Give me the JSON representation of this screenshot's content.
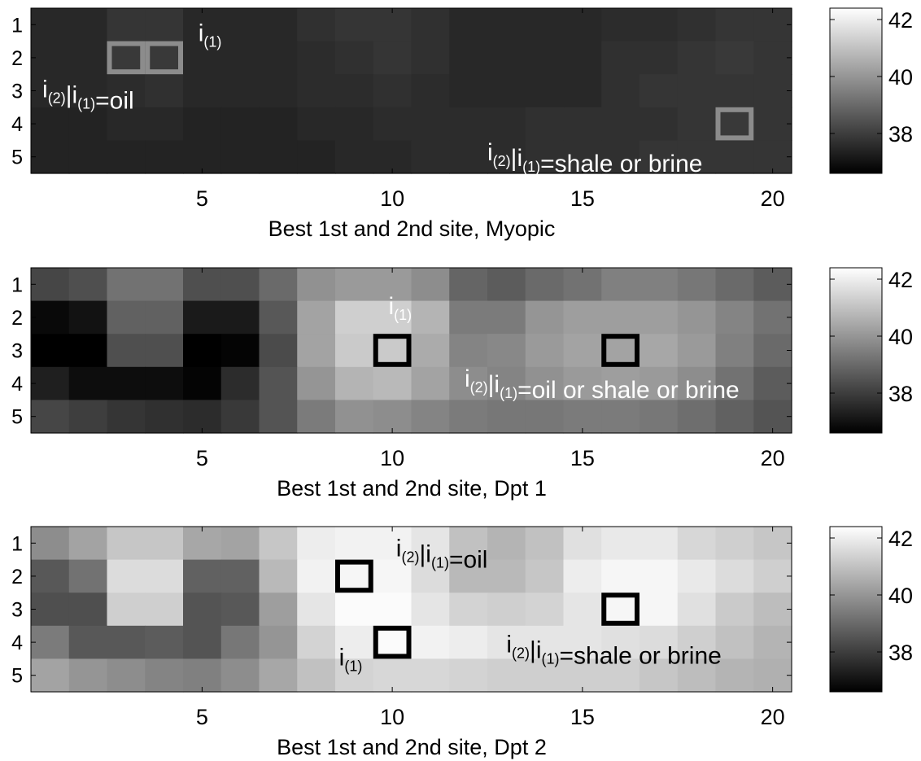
{
  "chart_data": [
    {
      "type": "heatmap",
      "title": "",
      "xlabel": "Best 1st and 2nd site, Myopic",
      "ylabel": "",
      "x_ticks": [
        "5",
        "10",
        "15",
        "20"
      ],
      "y_ticks": [
        "1",
        "2",
        "3",
        "4",
        "5"
      ],
      "xlim": [
        0.5,
        20.5
      ],
      "ylim": [
        0.5,
        5.5
      ],
      "colormap": "gray",
      "colorbar": {
        "ticks": [
          "38",
          "40",
          "42"
        ],
        "range": [
          36.6,
          42.4
        ]
      },
      "grid": false,
      "values": [
        [
          37.5,
          37.5,
          37.8,
          37.8,
          37.5,
          37.5,
          37.5,
          37.7,
          37.8,
          37.8,
          37.7,
          37.5,
          37.5,
          37.5,
          37.5,
          37.6,
          37.6,
          37.7,
          37.8,
          37.8
        ],
        [
          37.5,
          37.5,
          37.9,
          37.9,
          37.5,
          37.5,
          37.5,
          37.6,
          37.7,
          37.8,
          37.7,
          37.5,
          37.5,
          37.5,
          37.5,
          37.7,
          37.7,
          37.8,
          37.9,
          37.8
        ],
        [
          37.5,
          37.5,
          37.6,
          37.7,
          37.5,
          37.5,
          37.5,
          37.6,
          37.6,
          37.7,
          37.6,
          37.5,
          37.5,
          37.5,
          37.5,
          37.7,
          37.8,
          37.8,
          37.8,
          37.8
        ],
        [
          37.4,
          37.4,
          37.5,
          37.5,
          37.4,
          37.4,
          37.4,
          37.5,
          37.5,
          37.6,
          37.6,
          37.6,
          37.6,
          37.7,
          37.7,
          37.7,
          37.7,
          37.8,
          37.9,
          37.8
        ],
        [
          37.4,
          37.4,
          37.4,
          37.4,
          37.4,
          37.4,
          37.4,
          37.4,
          37.5,
          37.5,
          37.6,
          37.6,
          37.6,
          37.7,
          37.7,
          37.7,
          37.8,
          37.8,
          37.8,
          37.8
        ]
      ],
      "markers": [
        {
          "col": 3,
          "row": 2,
          "shade": "gray"
        },
        {
          "col": 4,
          "row": 2,
          "shade": "gray"
        },
        {
          "col": 19,
          "row": 4,
          "shade": "gray"
        }
      ],
      "annotations": [
        {
          "text": "i",
          "sub": "(1)",
          "col": 4.9,
          "row": 1.5
        },
        {
          "text": "i",
          "sub": "(2)",
          "rest": "|i",
          "sub2": "(1)",
          "tail": "=oil",
          "col": 0.8,
          "row": 3.2
        },
        {
          "text": "i",
          "sub": "(2)",
          "rest": "|i",
          "sub2": "(1)",
          "tail": "=shale or brine",
          "col": 12.5,
          "row": 5.1
        }
      ]
    },
    {
      "type": "heatmap",
      "title": "",
      "xlabel": "Best 1st and 2nd site, Dpt 1",
      "ylabel": "",
      "x_ticks": [
        "5",
        "10",
        "15",
        "20"
      ],
      "y_ticks": [
        "1",
        "2",
        "3",
        "4",
        "5"
      ],
      "xlim": [
        0.5,
        20.5
      ],
      "ylim": [
        0.5,
        5.5
      ],
      "colormap": "gray",
      "colorbar": {
        "ticks": [
          "38",
          "40",
          "42"
        ],
        "range": [
          36.6,
          42.4
        ]
      },
      "grid": false,
      "values": [
        [
          38.2,
          38.4,
          39.2,
          39.2,
          38.4,
          38.4,
          39.0,
          39.9,
          40.1,
          40.1,
          39.8,
          38.9,
          38.7,
          39.0,
          39.2,
          39.5,
          39.5,
          39.3,
          39.0,
          38.7
        ],
        [
          36.8,
          37.0,
          38.8,
          38.8,
          37.2,
          37.2,
          38.6,
          40.3,
          41.3,
          41.3,
          40.7,
          39.4,
          39.4,
          40.0,
          40.2,
          40.2,
          40.2,
          40.0,
          39.6,
          39.2
        ],
        [
          36.6,
          36.6,
          38.4,
          38.4,
          36.6,
          36.7,
          38.3,
          40.3,
          41.2,
          41.2,
          40.5,
          39.6,
          39.7,
          40.1,
          40.3,
          40.3,
          40.4,
          40.1,
          39.5,
          39.0
        ],
        [
          37.3,
          36.9,
          36.9,
          36.9,
          36.7,
          37.6,
          38.5,
          40.0,
          40.7,
          40.8,
          40.3,
          39.8,
          39.6,
          39.9,
          40.1,
          40.2,
          40.1,
          39.8,
          39.2,
          38.7
        ],
        [
          38.2,
          38.0,
          37.8,
          37.7,
          37.6,
          37.9,
          38.5,
          39.4,
          39.9,
          39.8,
          39.6,
          39.4,
          39.3,
          39.3,
          39.4,
          39.4,
          39.3,
          39.1,
          38.8,
          38.5
        ]
      ],
      "markers": [
        {
          "col": 10,
          "row": 3,
          "shade": "black"
        },
        {
          "col": 16,
          "row": 3,
          "shade": "black"
        }
      ],
      "annotations": [
        {
          "text": "i",
          "sub": "(1)",
          "col": 9.9,
          "row": 1.9
        },
        {
          "text": "i",
          "sub": "(2)",
          "rest": "|i",
          "sub2": "(1)",
          "tail": "=oil or shale or brine",
          "col": 11.9,
          "row": 4.1
        }
      ]
    },
    {
      "type": "heatmap",
      "title": "",
      "xlabel": "Best 1st and 2nd site, Dpt 2",
      "ylabel": "",
      "x_ticks": [
        "5",
        "10",
        "15",
        "20"
      ],
      "y_ticks": [
        "1",
        "2",
        "3",
        "4",
        "5"
      ],
      "xlim": [
        0.5,
        20.5
      ],
      "ylim": [
        0.5,
        5.5
      ],
      "colormap": "gray",
      "colorbar": {
        "ticks": [
          "38",
          "40",
          "42"
        ],
        "range": [
          36.6,
          42.4
        ]
      },
      "grid": false,
      "values": [
        [
          39.8,
          40.3,
          41.1,
          41.1,
          40.4,
          40.3,
          41.1,
          42.0,
          42.1,
          42.1,
          41.8,
          41.0,
          40.7,
          41.0,
          41.7,
          41.9,
          41.9,
          41.5,
          41.3,
          41.1
        ],
        [
          38.6,
          39.2,
          41.6,
          41.6,
          38.8,
          38.8,
          40.8,
          42.1,
          42.2,
          42.2,
          41.6,
          40.8,
          40.8,
          41.1,
          42.0,
          42.2,
          42.2,
          41.9,
          41.6,
          41.3
        ],
        [
          38.4,
          38.4,
          41.3,
          41.3,
          38.5,
          38.6,
          40.2,
          41.8,
          42.3,
          42.3,
          41.8,
          41.4,
          41.3,
          41.4,
          41.8,
          42.2,
          42.2,
          41.7,
          41.2,
          40.9
        ],
        [
          39.4,
          38.6,
          38.6,
          38.7,
          38.5,
          39.3,
          40.0,
          41.4,
          42.0,
          42.3,
          42.1,
          42.0,
          41.8,
          41.8,
          41.8,
          41.7,
          41.6,
          41.3,
          41.0,
          40.7
        ],
        [
          40.3,
          40.0,
          39.8,
          39.6,
          39.5,
          39.8,
          40.4,
          41.0,
          41.4,
          41.5,
          41.5,
          41.4,
          41.3,
          41.3,
          41.3,
          41.3,
          41.1,
          40.9,
          40.7,
          40.6
        ]
      ],
      "markers": [
        {
          "col": 9,
          "row": 2,
          "shade": "black"
        },
        {
          "col": 10,
          "row": 4,
          "shade": "black"
        },
        {
          "col": 16,
          "row": 3,
          "shade": "black"
        }
      ],
      "annotations": [
        {
          "text": "i",
          "sub": "(2)",
          "rest": "|i",
          "sub2": "(1)",
          "tail": "=oil",
          "col": 10.1,
          "row": 1.4
        },
        {
          "text": "i",
          "sub": "(1)",
          "col": 8.6,
          "row": 4.7
        },
        {
          "text": "i",
          "sub": "(2)",
          "rest": "|i",
          "sub2": "(1)",
          "tail": "=shale or brine",
          "col": 13.0,
          "row": 4.3
        }
      ]
    }
  ]
}
